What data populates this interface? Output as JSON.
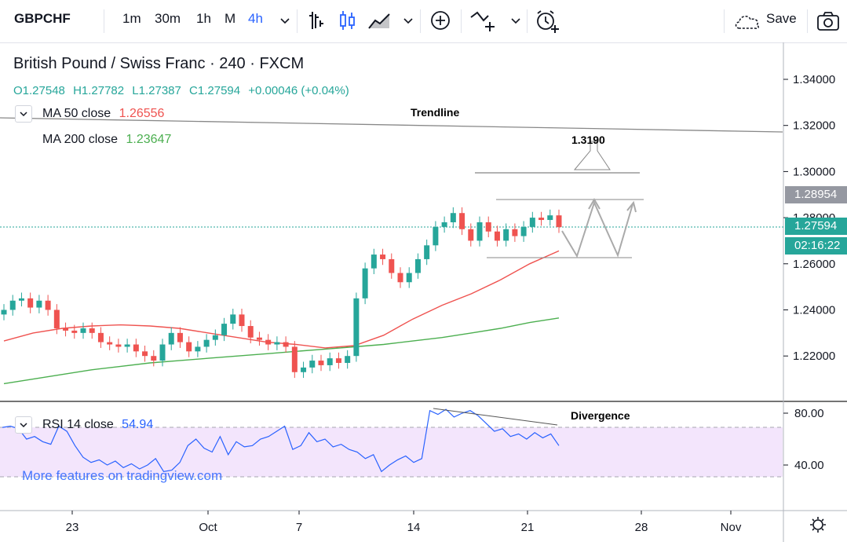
{
  "toolbar": {
    "symbol": "GBPCHF",
    "intervals": [
      "1m",
      "30m",
      "1h",
      "M",
      "4h"
    ],
    "active_interval": "4h",
    "save_label": "Save",
    "icons": [
      "chevron-down-icon",
      "bar-style-icon",
      "candle-style-icon",
      "area-style-icon",
      "add-compare-icon",
      "indicators-icon",
      "alert-icon",
      "cloud-icon",
      "camera-icon"
    ]
  },
  "legend": {
    "title": "British Pound / Swiss Franc · 240 · FXCM",
    "open": "O1.27548",
    "high": "H1.27782",
    "low": "L1.27387",
    "close": "C1.27594",
    "change": "+0.00046 (+0.04%)"
  },
  "indicators": {
    "ma50_label": "MA 50 close",
    "ma50_value": "1.26556",
    "ma200_label": "MA 200 close",
    "ma200_value": "1.23647",
    "rsi_label": "RSI 14 close",
    "rsi_value": "54.94"
  },
  "annotations": {
    "trendline": "Trendline",
    "target": "1.3190",
    "divergence": "Divergence"
  },
  "price_tags": {
    "high_level": "1.28954",
    "last_price": "1.27594",
    "countdown": "02:16:22"
  },
  "watermark": "More features on tradingview.com",
  "colors": {
    "up": "#26a69a",
    "down": "#ef5350",
    "ma50": "#ef5350",
    "ma200": "#4caf50",
    "rsi_line": "#2962ff",
    "rsi_band": "#f3e5fc"
  },
  "chart_data": [
    {
      "type": "line",
      "title": "British Pound / Swiss Franc · 240 · FXCM",
      "y_ticks": [
        "1.34000",
        "1.32000",
        "1.30000",
        "1.28000",
        "1.26000",
        "1.24000",
        "1.22000"
      ],
      "ylim": [
        1.205,
        1.355
      ],
      "x_ticks": [
        "23",
        "Oct",
        "7",
        "14",
        "21",
        "28",
        "Nov"
      ],
      "series": [
        {
          "name": "GBPCHF",
          "values": [
            1.24,
            1.244,
            1.245,
            1.241,
            1.244,
            1.24,
            1.232,
            1.231,
            1.23,
            1.232,
            1.23,
            1.226,
            1.225,
            1.224,
            1.225,
            1.222,
            1.22,
            1.218,
            1.225,
            1.23,
            1.226,
            1.222,
            1.224,
            1.227,
            1.229,
            1.234,
            1.238,
            1.233,
            1.228,
            1.227,
            1.225,
            1.226,
            1.224,
            1.213,
            1.215,
            1.218,
            1.216,
            1.219,
            1.217,
            1.22,
            1.245,
            1.258,
            1.264,
            1.262,
            1.256,
            1.252,
            1.256,
            1.262,
            1.268,
            1.276,
            1.278,
            1.282,
            1.275,
            1.27,
            1.278,
            1.274,
            1.27,
            1.275,
            1.272,
            1.276,
            1.28,
            1.279,
            1.281,
            1.2759
          ]
        },
        {
          "name": "MA 50 close",
          "values": [
            1.2265,
            1.23,
            1.232,
            1.233,
            1.2335,
            1.233,
            1.232,
            1.23,
            1.228,
            1.226,
            1.225,
            1.2235,
            1.2245,
            1.229,
            1.236,
            1.242,
            1.247,
            1.253,
            1.26,
            1.2656
          ]
        },
        {
          "name": "MA 200 close",
          "values": [
            1.208,
            1.21,
            1.212,
            1.214,
            1.2155,
            1.217,
            1.218,
            1.219,
            1.22,
            1.221,
            1.222,
            1.223,
            1.224,
            1.225,
            1.2265,
            1.228,
            1.23,
            1.232,
            1.2345,
            1.2365
          ]
        }
      ],
      "annotations": {
        "trendline": "Trendline",
        "target": "1.3190"
      }
    },
    {
      "type": "line",
      "title": "RSI 14 close",
      "y_ticks": [
        "80.00",
        "40.00"
      ],
      "ylim": [
        20,
        90
      ],
      "series": [
        {
          "name": "RSI 14 close",
          "values": [
            69,
            70,
            68,
            60,
            62,
            58,
            56,
            70,
            66,
            55,
            46,
            42,
            44,
            40,
            43,
            38,
            41,
            37,
            40,
            45,
            35,
            36,
            42,
            55,
            60,
            53,
            50,
            62,
            48,
            58,
            54,
            55,
            60,
            62,
            66,
            70,
            52,
            55,
            65,
            58,
            60,
            54,
            56,
            52,
            50,
            45,
            48,
            35,
            40,
            44,
            47,
            42,
            45,
            82,
            79,
            83,
            77,
            80,
            82,
            78,
            72,
            66,
            68,
            62,
            64,
            60,
            65,
            61,
            64,
            55
          ]
        }
      ],
      "annotations": {
        "divergence": "Divergence"
      },
      "bands": [
        30,
        70
      ]
    }
  ]
}
